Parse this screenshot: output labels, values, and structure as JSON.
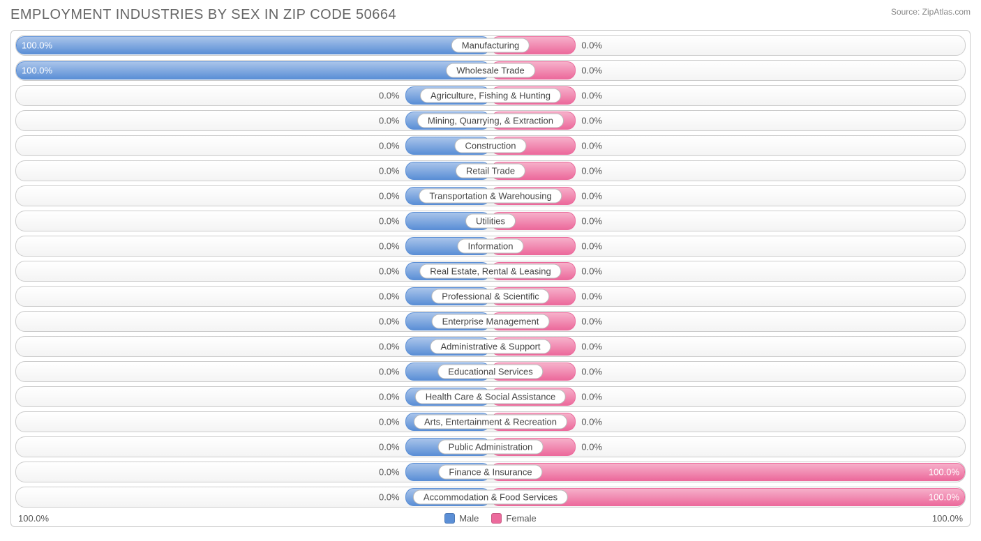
{
  "title": "EMPLOYMENT INDUSTRIES BY SEX IN ZIP CODE 50664",
  "source": "Source: ZipAtlas.com",
  "colors": {
    "male": "#5b8fd6",
    "male_light": "#a9c4ea",
    "female": "#ec6a9c",
    "female_light": "#f6b0ca",
    "text": "#666666",
    "border": "#cccccc",
    "bg": "#ffffff"
  },
  "axis": {
    "left": "100.0%",
    "right": "100.0%"
  },
  "legend": {
    "male": "Male",
    "female": "Female"
  },
  "stub_pct": 18,
  "categories": [
    {
      "label": "Manufacturing",
      "male": 100.0,
      "female": 0.0
    },
    {
      "label": "Wholesale Trade",
      "male": 100.0,
      "female": 0.0
    },
    {
      "label": "Agriculture, Fishing & Hunting",
      "male": 0.0,
      "female": 0.0
    },
    {
      "label": "Mining, Quarrying, & Extraction",
      "male": 0.0,
      "female": 0.0
    },
    {
      "label": "Construction",
      "male": 0.0,
      "female": 0.0
    },
    {
      "label": "Retail Trade",
      "male": 0.0,
      "female": 0.0
    },
    {
      "label": "Transportation & Warehousing",
      "male": 0.0,
      "female": 0.0
    },
    {
      "label": "Utilities",
      "male": 0.0,
      "female": 0.0
    },
    {
      "label": "Information",
      "male": 0.0,
      "female": 0.0
    },
    {
      "label": "Real Estate, Rental & Leasing",
      "male": 0.0,
      "female": 0.0
    },
    {
      "label": "Professional & Scientific",
      "male": 0.0,
      "female": 0.0
    },
    {
      "label": "Enterprise Management",
      "male": 0.0,
      "female": 0.0
    },
    {
      "label": "Administrative & Support",
      "male": 0.0,
      "female": 0.0
    },
    {
      "label": "Educational Services",
      "male": 0.0,
      "female": 0.0
    },
    {
      "label": "Health Care & Social Assistance",
      "male": 0.0,
      "female": 0.0
    },
    {
      "label": "Arts, Entertainment & Recreation",
      "male": 0.0,
      "female": 0.0
    },
    {
      "label": "Public Administration",
      "male": 0.0,
      "female": 0.0
    },
    {
      "label": "Finance & Insurance",
      "male": 0.0,
      "female": 100.0
    },
    {
      "label": "Accommodation & Food Services",
      "male": 0.0,
      "female": 100.0
    }
  ]
}
